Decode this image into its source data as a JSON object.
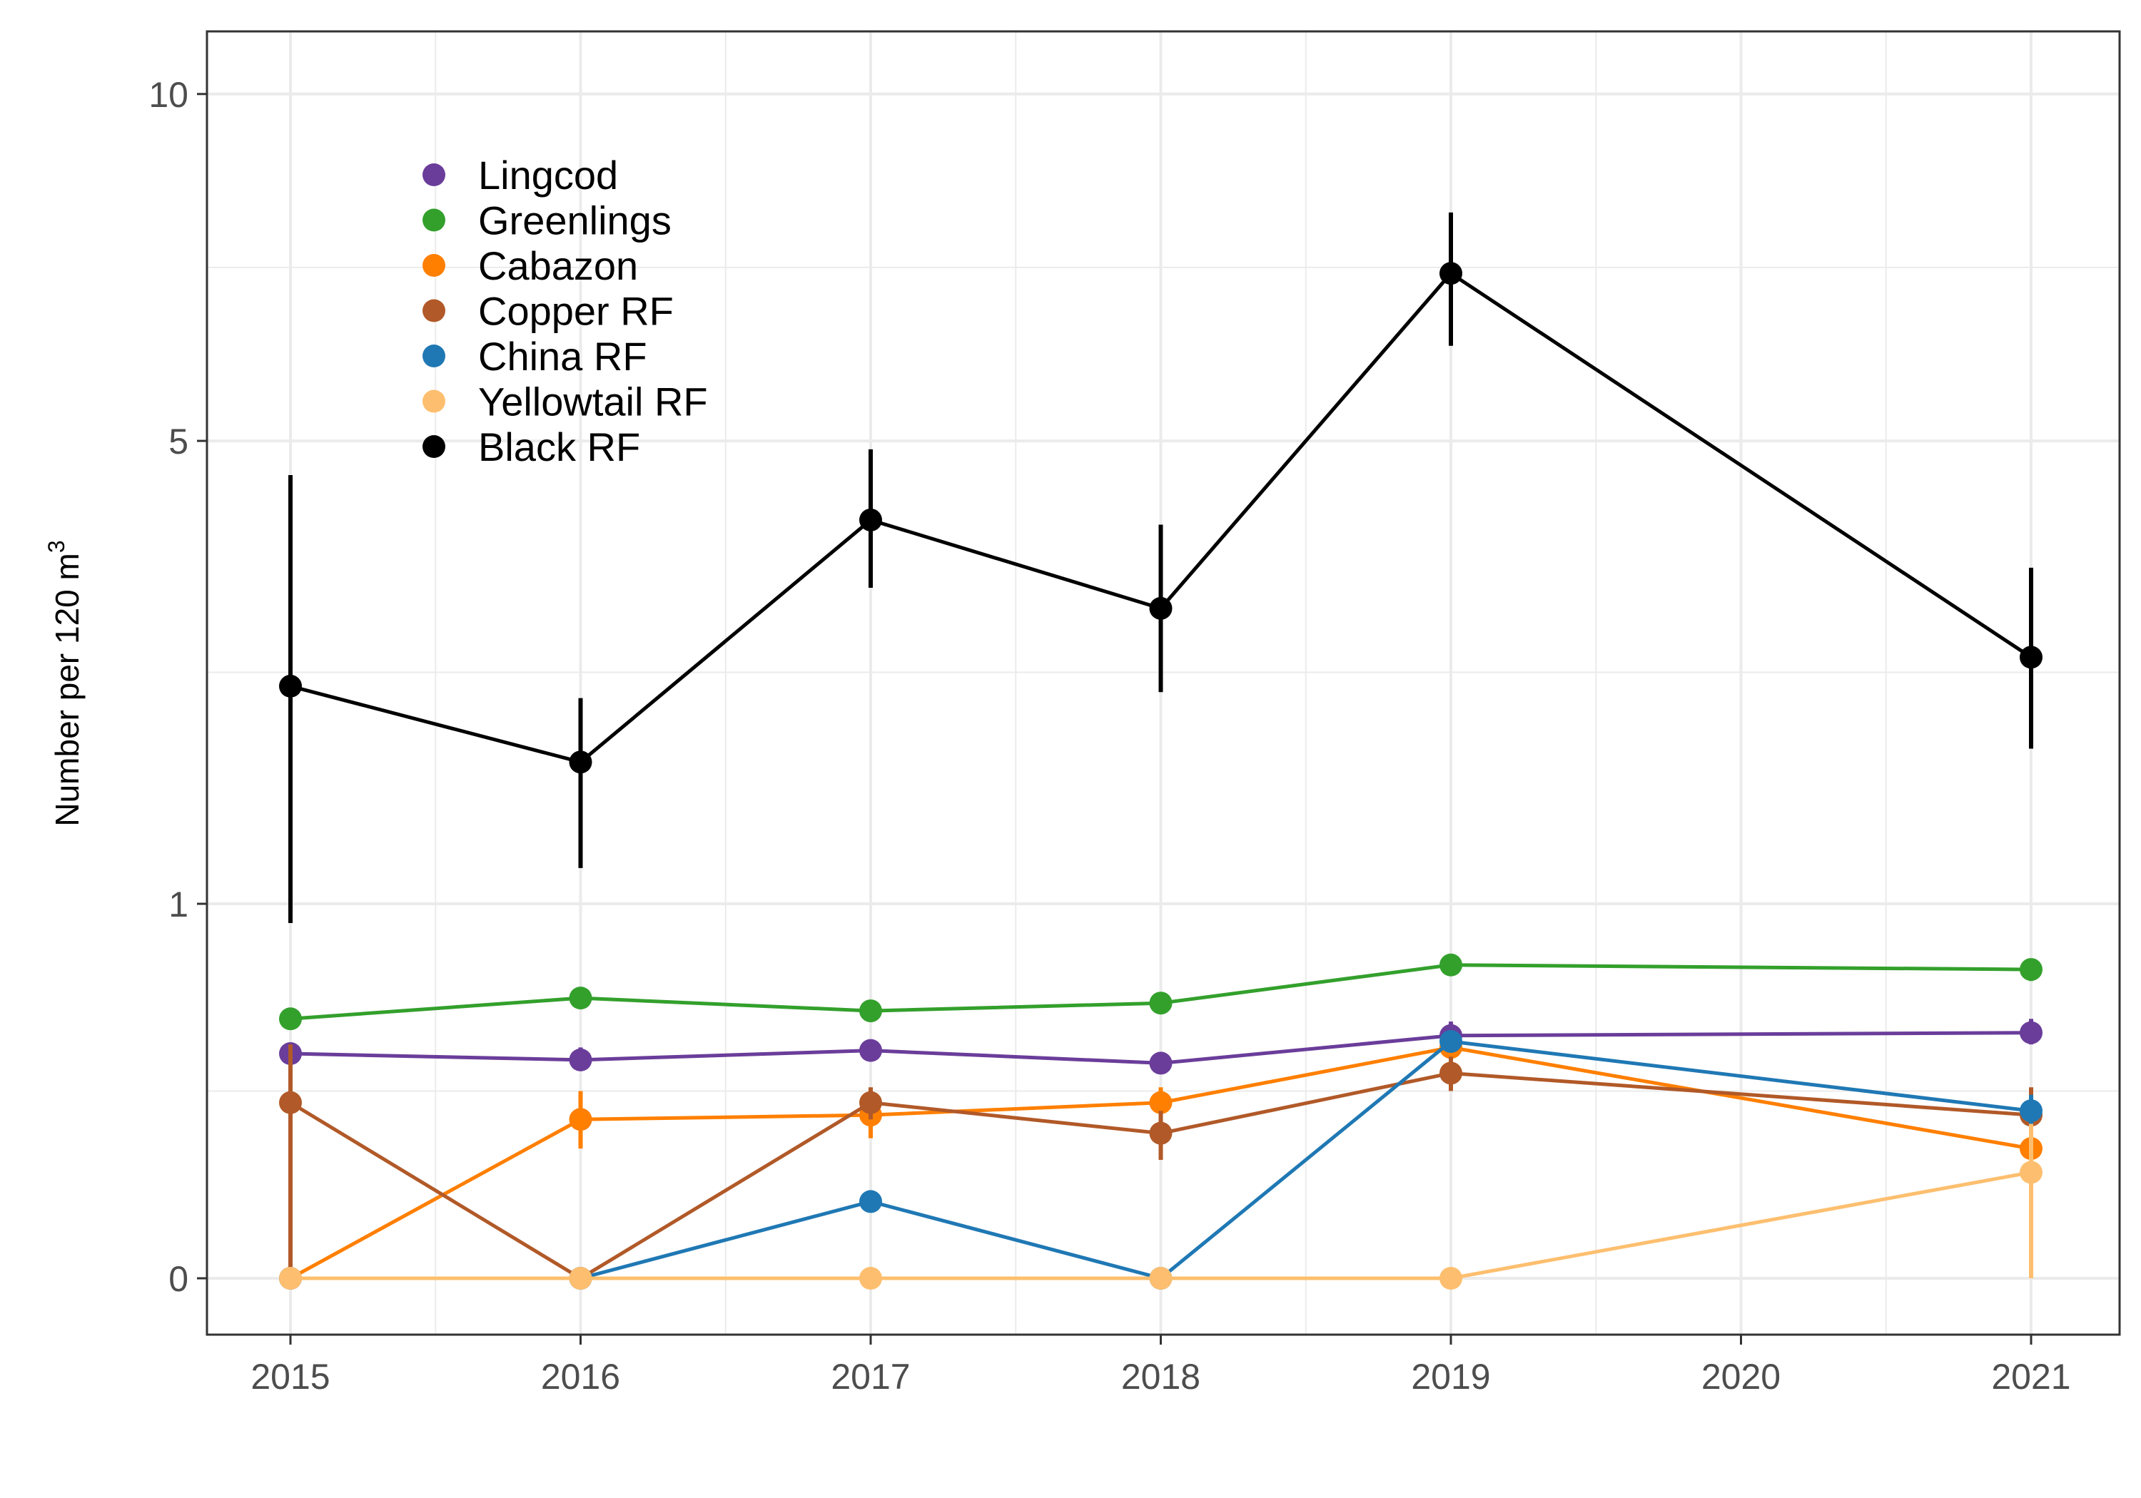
{
  "chart_data": {
    "type": "line",
    "title": "",
    "xlabel": "",
    "ylabel": "Number per 120 m",
    "ylabel_superscript": "3",
    "x": [
      2015,
      2016,
      2017,
      2018,
      2019,
      2020,
      2021
    ],
    "x_ticks": [
      "2015",
      "2016",
      "2017",
      "2018",
      "2019",
      "2020",
      "2021"
    ],
    "y_scale": "sqrt",
    "y_ticks": [
      "0",
      "1",
      "5",
      "10"
    ],
    "ylim": [
      0,
      10.6
    ],
    "grid": true,
    "legend_position": "top-left",
    "series": [
      {
        "name": "Lingcod",
        "color": "#6a3d9a",
        "points": [
          {
            "x": 2015,
            "y": 0.36,
            "lo": 0.36,
            "hi": 0.36
          },
          {
            "x": 2016,
            "y": 0.34,
            "lo": 0.31,
            "hi": 0.38
          },
          {
            "x": 2017,
            "y": 0.37,
            "lo": 0.35,
            "hi": 0.39
          },
          {
            "x": 2018,
            "y": 0.33,
            "lo": 0.3,
            "hi": 0.36
          },
          {
            "x": 2019,
            "y": 0.42,
            "lo": 0.39,
            "hi": 0.47
          },
          {
            "x": 2021,
            "y": 0.43,
            "lo": 0.39,
            "hi": 0.48
          }
        ]
      },
      {
        "name": "Greenlings",
        "color": "#33a02c",
        "points": [
          {
            "x": 2015,
            "y": 0.48,
            "lo": 0.45,
            "hi": 0.51
          },
          {
            "x": 2016,
            "y": 0.56,
            "lo": 0.52,
            "hi": 0.6
          },
          {
            "x": 2017,
            "y": 0.51,
            "lo": 0.48,
            "hi": 0.54
          },
          {
            "x": 2018,
            "y": 0.54,
            "lo": 0.51,
            "hi": 0.58
          },
          {
            "x": 2019,
            "y": 0.7,
            "lo": 0.66,
            "hi": 0.74
          },
          {
            "x": 2021,
            "y": 0.68,
            "lo": 0.63,
            "hi": 0.73
          }
        ]
      },
      {
        "name": "Cabazon",
        "color": "#ff7f00",
        "points": [
          {
            "x": 2015,
            "y": 0.0,
            "lo": 0.0,
            "hi": 0.0
          },
          {
            "x": 2016,
            "y": 0.18,
            "lo": 0.12,
            "hi": 0.25
          },
          {
            "x": 2017,
            "y": 0.19,
            "lo": 0.14,
            "hi": 0.25
          },
          {
            "x": 2018,
            "y": 0.22,
            "lo": 0.18,
            "hi": 0.26
          },
          {
            "x": 2019,
            "y": 0.38,
            "lo": 0.35,
            "hi": 0.42
          },
          {
            "x": 2021,
            "y": 0.12,
            "lo": 0.09,
            "hi": 0.16
          }
        ]
      },
      {
        "name": "Copper RF",
        "color": "#b15928",
        "points": [
          {
            "x": 2015,
            "y": 0.22,
            "lo": 0.0,
            "hi": 0.39
          },
          {
            "x": 2016,
            "y": 0.0,
            "lo": 0.0,
            "hi": 0.0
          },
          {
            "x": 2017,
            "y": 0.22,
            "lo": 0.18,
            "hi": 0.26
          },
          {
            "x": 2018,
            "y": 0.15,
            "lo": 0.1,
            "hi": 0.2
          },
          {
            "x": 2019,
            "y": 0.3,
            "lo": 0.25,
            "hi": 0.35
          },
          {
            "x": 2021,
            "y": 0.19,
            "lo": 0.13,
            "hi": 0.26
          }
        ]
      },
      {
        "name": "China RF",
        "color": "#1f78b4",
        "points": [
          {
            "x": 2015,
            "y": 0.0,
            "lo": 0.0,
            "hi": 0.0
          },
          {
            "x": 2016,
            "y": 0.0,
            "lo": 0.0,
            "hi": 0.0
          },
          {
            "x": 2017,
            "y": 0.042,
            "lo": 0.042,
            "hi": 0.042
          },
          {
            "x": 2018,
            "y": 0.0,
            "lo": 0.0,
            "hi": 0.0
          },
          {
            "x": 2019,
            "y": 0.4,
            "lo": 0.4,
            "hi": 0.4
          },
          {
            "x": 2021,
            "y": 0.2,
            "lo": 0.15,
            "hi": 0.24
          }
        ]
      },
      {
        "name": "Yellowtail RF",
        "color": "#fdbf6f",
        "points": [
          {
            "x": 2015,
            "y": 0.0,
            "lo": 0.0,
            "hi": 0.0
          },
          {
            "x": 2016,
            "y": 0.0,
            "lo": 0.0,
            "hi": 0.0
          },
          {
            "x": 2017,
            "y": 0.0,
            "lo": 0.0,
            "hi": 0.0
          },
          {
            "x": 2018,
            "y": 0.0,
            "lo": 0.0,
            "hi": 0.0
          },
          {
            "x": 2019,
            "y": 0.0,
            "lo": 0.0,
            "hi": 0.0
          },
          {
            "x": 2021,
            "y": 0.08,
            "lo": 0.0,
            "hi": 0.17
          }
        ]
      },
      {
        "name": "Black RF",
        "color": "#000000",
        "points": [
          {
            "x": 2015,
            "y": 2.5,
            "lo": 0.9,
            "hi": 4.6
          },
          {
            "x": 2016,
            "y": 1.9,
            "lo": 1.2,
            "hi": 2.4
          },
          {
            "x": 2017,
            "y": 4.1,
            "lo": 3.4,
            "hi": 4.9
          },
          {
            "x": 2018,
            "y": 3.2,
            "lo": 2.45,
            "hi": 4.05
          },
          {
            "x": 2019,
            "y": 7.2,
            "lo": 6.2,
            "hi": 8.1
          },
          {
            "x": 2021,
            "y": 2.75,
            "lo": 2.0,
            "hi": 3.6
          }
        ]
      }
    ]
  }
}
